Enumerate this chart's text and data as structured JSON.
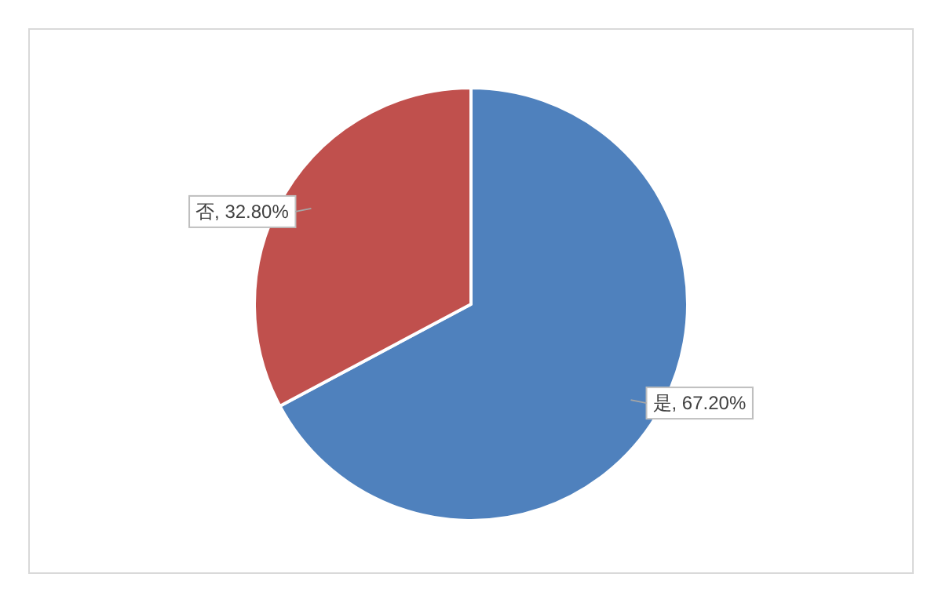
{
  "chart_data": {
    "type": "pie",
    "categories": [
      "是",
      "否"
    ],
    "values": [
      67.2,
      32.8
    ],
    "value_labels": [
      "67.20%",
      "32.80%"
    ],
    "colors": [
      "#4f81bd",
      "#c0504d"
    ]
  }
}
